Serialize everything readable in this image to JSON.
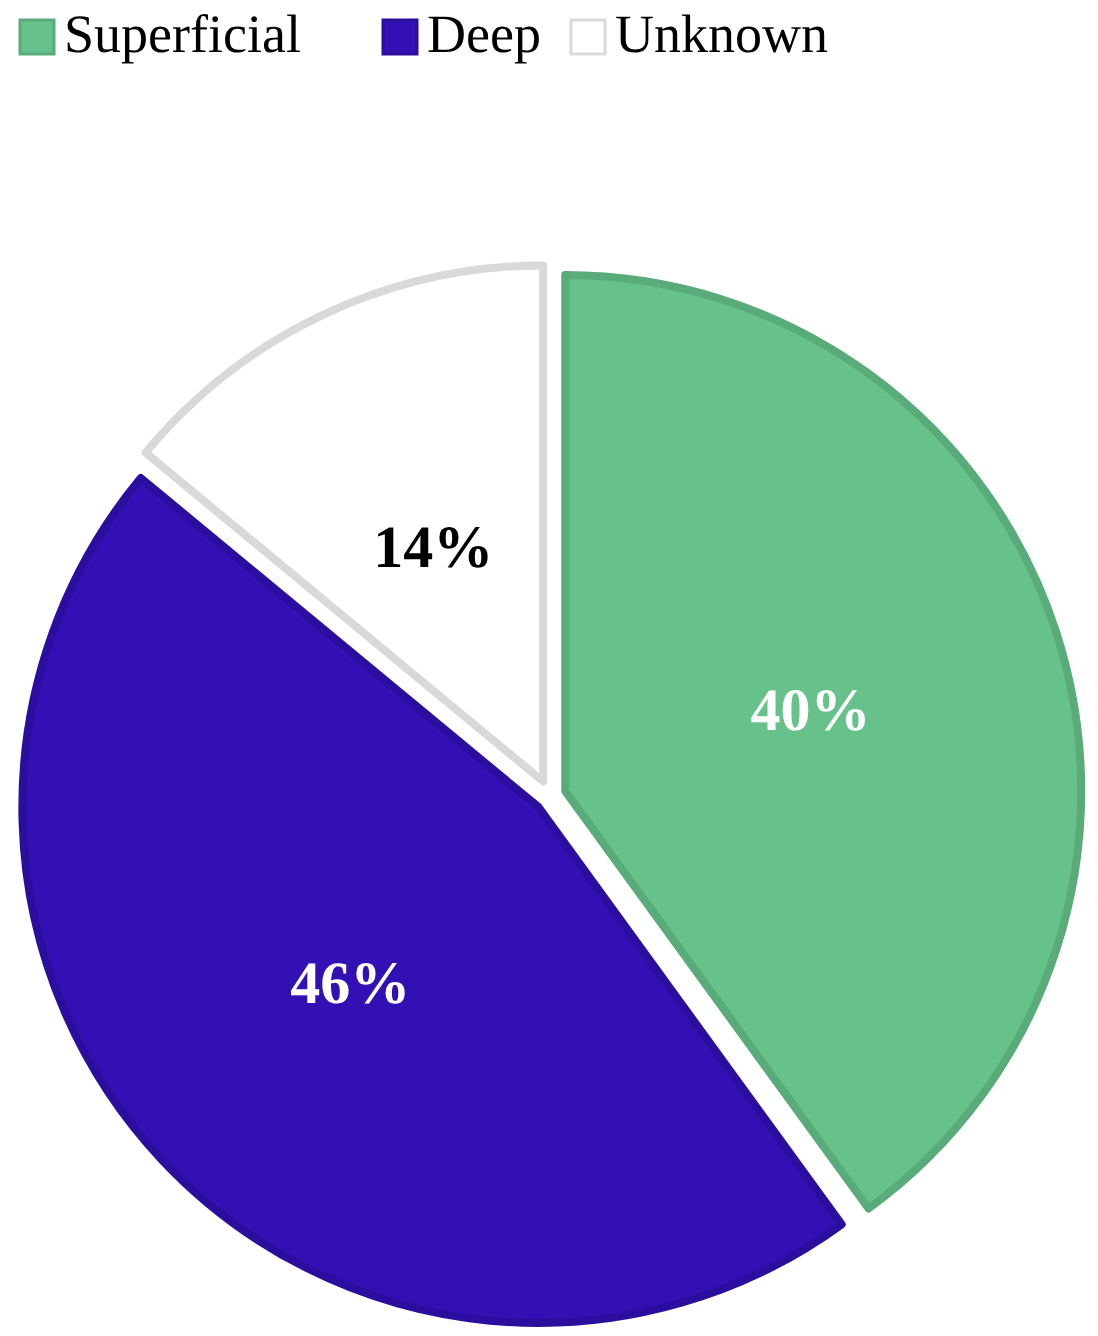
{
  "chart_data": {
    "type": "pie",
    "categories": [
      "Superficial",
      "Deep",
      "Unknown"
    ],
    "values": [
      40,
      46,
      14
    ],
    "value_labels": [
      "40%",
      "46%",
      "14%"
    ],
    "colors": [
      "#66c28a",
      "#3210b4",
      "#ffffff"
    ],
    "legend": "top left"
  }
}
